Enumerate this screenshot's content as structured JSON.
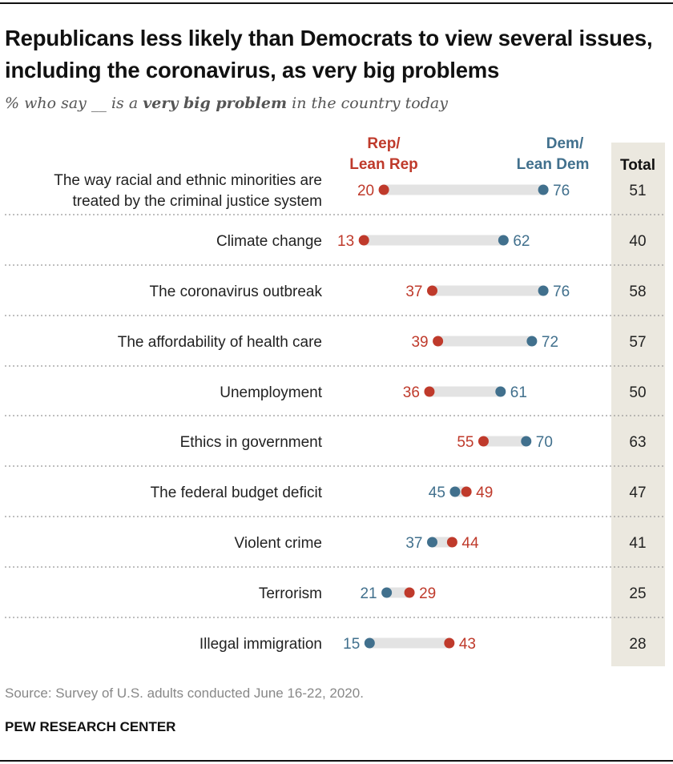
{
  "chart_data": {
    "type": "dot",
    "title": "Republicans less likely than Democrats to view several issues, including the coronavirus, as very big problems",
    "subtitle_parts": [
      "% who say __ is a ",
      "very big problem",
      " in the country today"
    ],
    "series": [
      {
        "name": "Rep/ Lean Rep",
        "name_lines": [
          "Rep/",
          "Lean Rep"
        ],
        "color": "#bf3a2b",
        "values": [
          20,
          13,
          37,
          39,
          36,
          55,
          49,
          44,
          29,
          43
        ]
      },
      {
        "name": "Dem/ Lean Dem",
        "name_lines": [
          "Dem/",
          "Lean Dem"
        ],
        "color": "#41708d",
        "values": [
          76,
          62,
          76,
          72,
          61,
          70,
          45,
          37,
          21,
          15
        ]
      }
    ],
    "categories": [
      [
        "The way racial and ethnic minorities are",
        "treated by the criminal justice system"
      ],
      [
        "Climate change"
      ],
      [
        "The coronavirus outbreak"
      ],
      [
        "The affordability of health care"
      ],
      [
        "Unemployment"
      ],
      [
        "Ethics in government"
      ],
      [
        "The federal budget deficit"
      ],
      [
        "Violent crime"
      ],
      [
        "Terrorism"
      ],
      [
        "Illegal immigration"
      ]
    ],
    "total_label": "Total",
    "totals": [
      51,
      40,
      58,
      57,
      50,
      63,
      47,
      41,
      25,
      28
    ],
    "connector_color": "#e3e3e3",
    "total_column_color": "#ebe8df"
  },
  "footer": {
    "source": "Source: Survey of U.S. adults conducted June 16-22, 2020.",
    "brand": "PEW RESEARCH CENTER"
  }
}
